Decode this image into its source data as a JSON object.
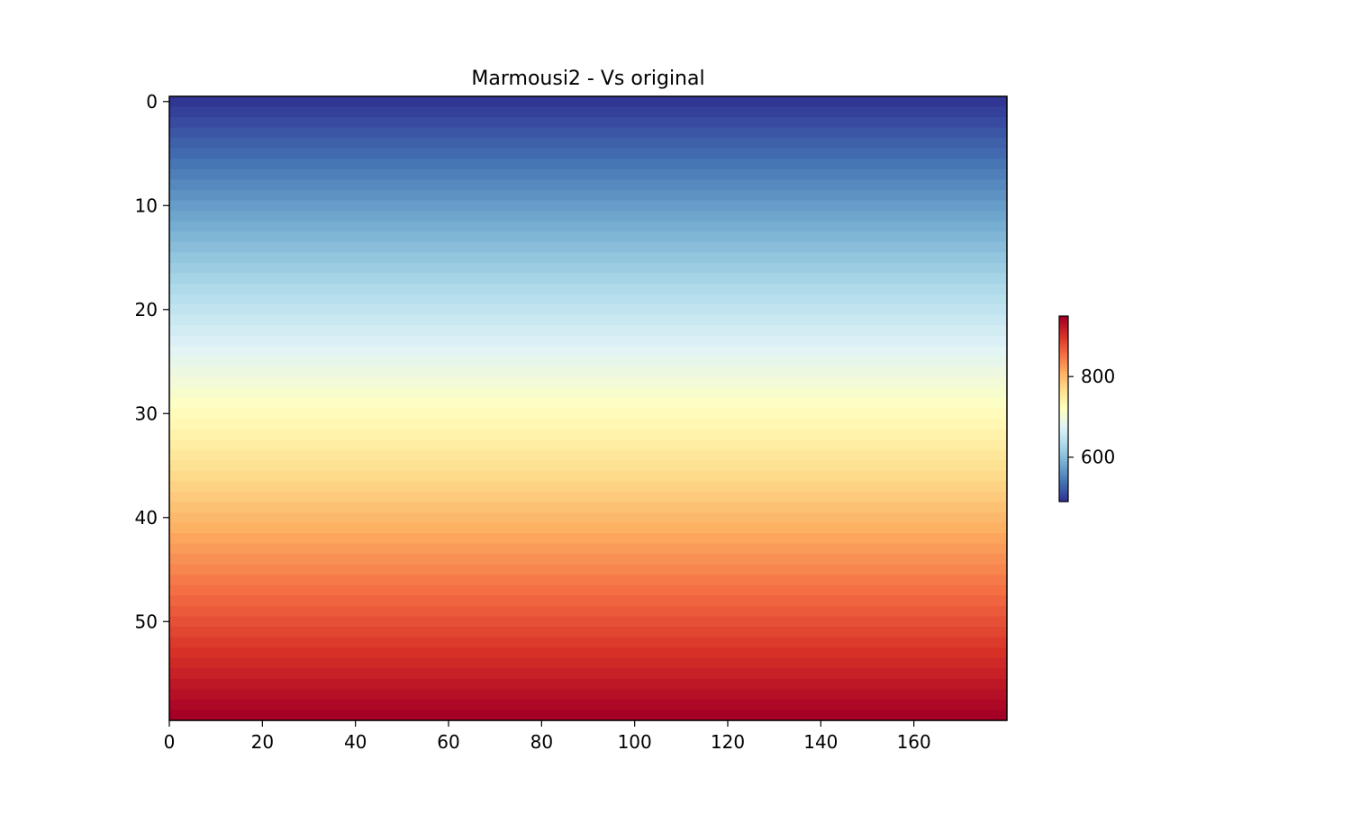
{
  "chart_data": {
    "type": "heatmap",
    "title": "Marmousi2 - Vs original",
    "xlabel": "",
    "ylabel": "",
    "colormap": "RdYlBu_r",
    "x_extent": [
      0,
      180
    ],
    "y_extent": [
      0,
      60
    ],
    "y_inverted": true,
    "rows": 60,
    "cols": 180,
    "profile": "value varies with depth (row) only; constant along x",
    "value_range": [
      490,
      950
    ],
    "x_ticks": [
      0,
      20,
      40,
      60,
      80,
      100,
      120,
      140,
      160
    ],
    "y_ticks": [
      0,
      10,
      20,
      30,
      40,
      50
    ],
    "colorbar": {
      "range": [
        490,
        950
      ],
      "ticks": [
        600,
        800
      ],
      "placement": "right"
    },
    "grid": false
  }
}
